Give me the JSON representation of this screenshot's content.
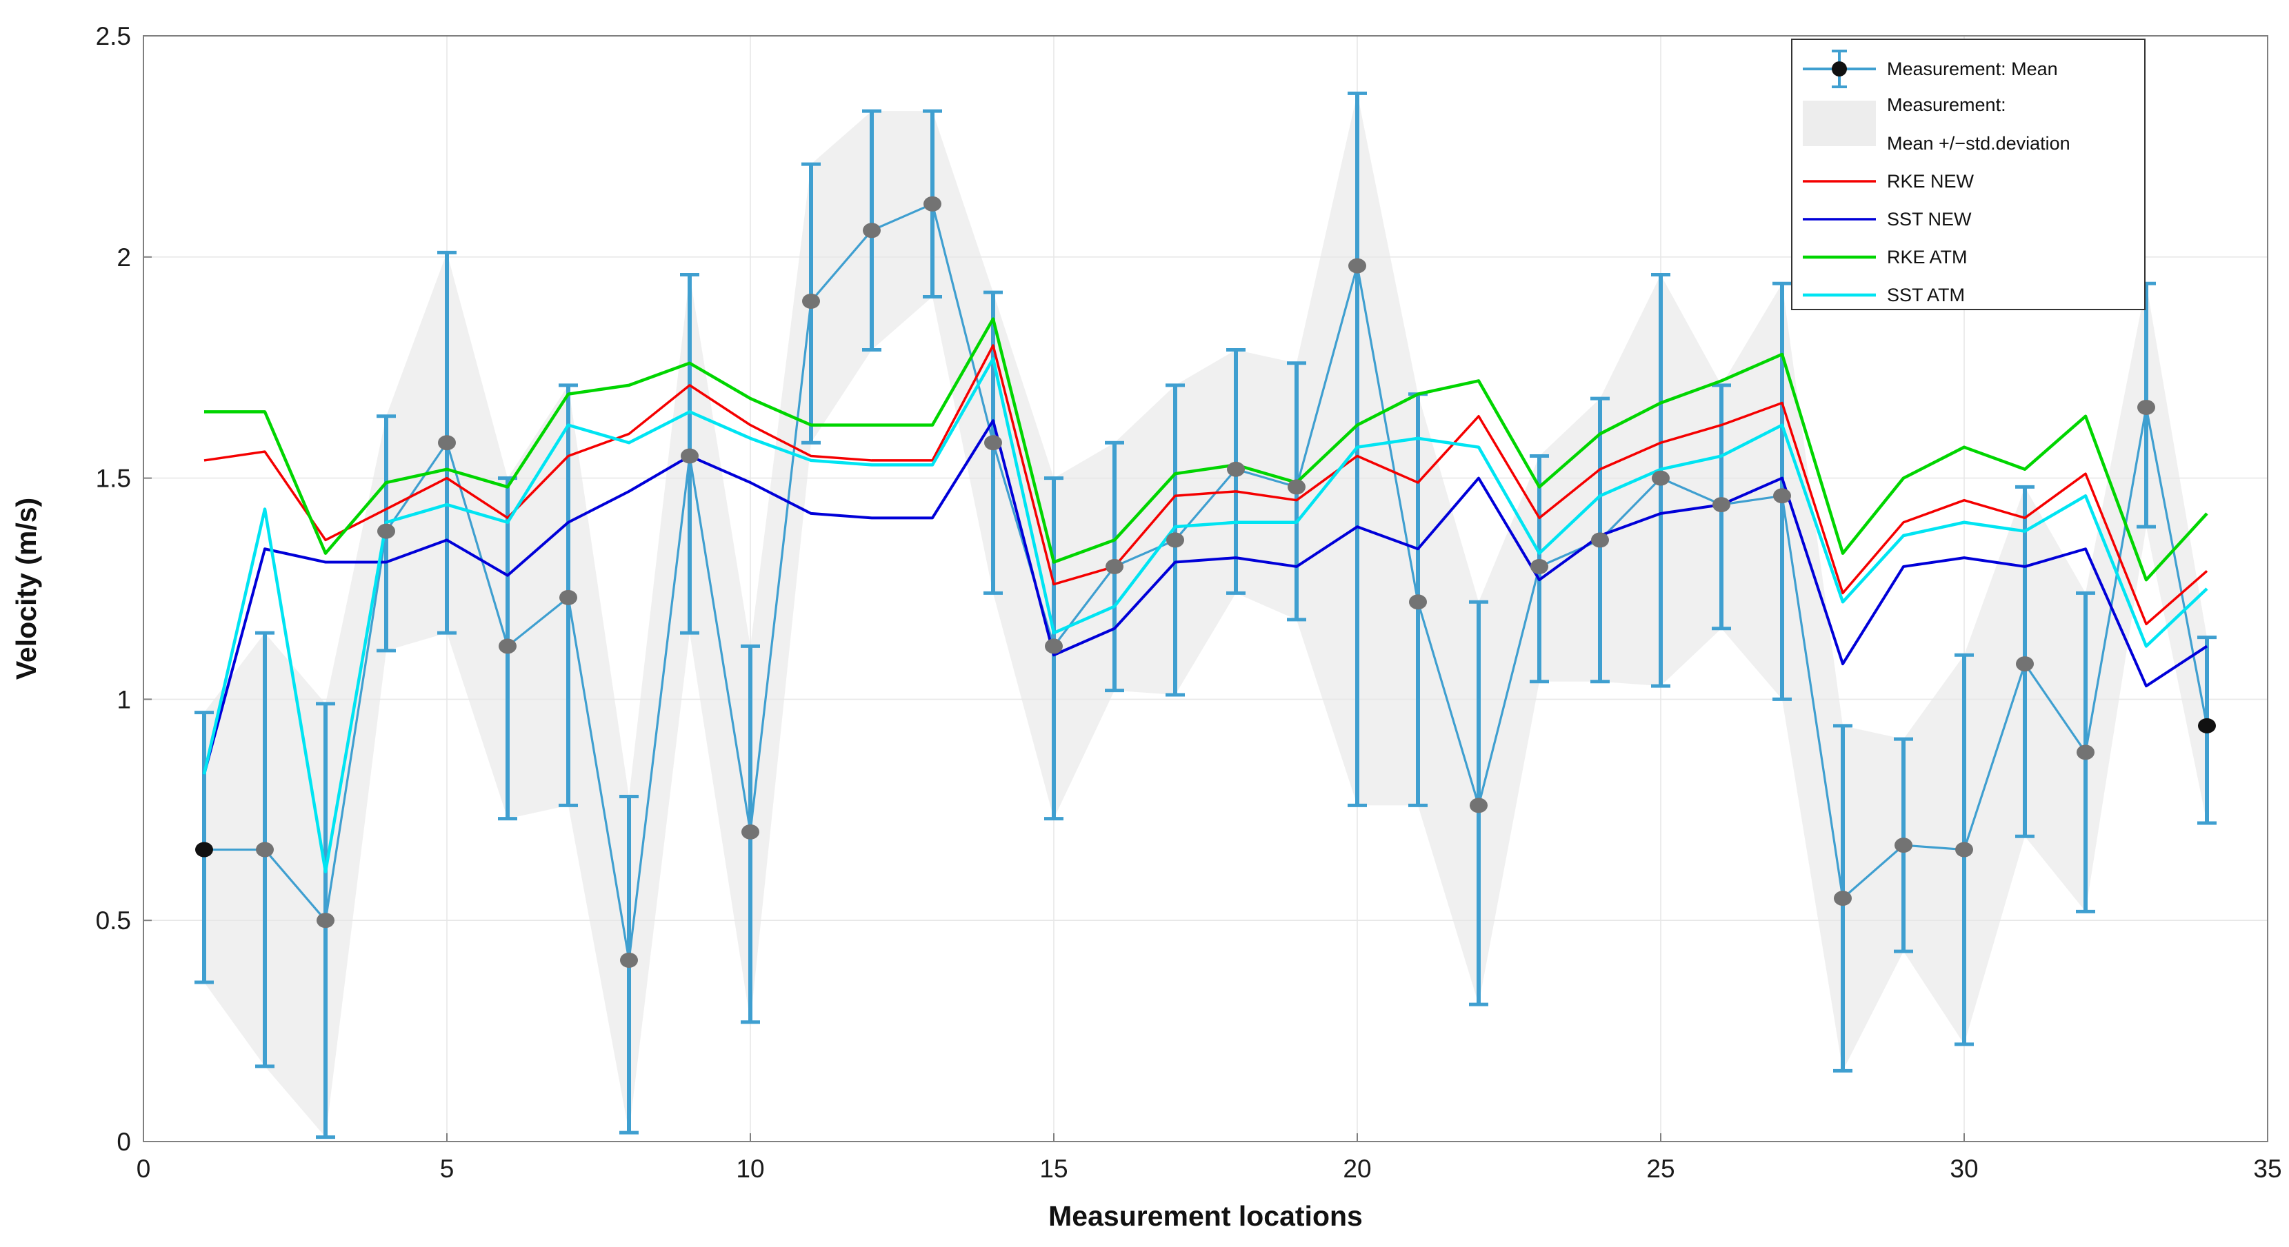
{
  "chart_data": {
    "type": "line",
    "title": "",
    "xlabel": "Measurement locations",
    "ylabel": "Velocity (m/s)",
    "xlim": [
      0,
      35
    ],
    "ylim": [
      0,
      2.5
    ],
    "x_ticks": [
      0,
      5,
      10,
      15,
      20,
      25,
      30,
      35
    ],
    "y_ticks": [
      0,
      0.5,
      1,
      1.5,
      2,
      2.5
    ],
    "grid": true,
    "legend_position": "top-right",
    "x": [
      1,
      2,
      3,
      4,
      5,
      6,
      7,
      8,
      9,
      10,
      11,
      12,
      13,
      14,
      15,
      16,
      17,
      18,
      19,
      20,
      21,
      22,
      23,
      24,
      25,
      26,
      27,
      28,
      29,
      30,
      31,
      32,
      33,
      34
    ],
    "measurement": {
      "name": "Measurement: Mean",
      "line_color": "#3f9fd0",
      "marker_color": "#737373",
      "endpoint_marker_color": "#111111",
      "mean": [
        0.66,
        0.66,
        0.5,
        1.38,
        1.58,
        1.12,
        1.23,
        0.41,
        1.55,
        0.7,
        1.9,
        2.06,
        2.12,
        1.58,
        1.12,
        1.3,
        1.36,
        1.52,
        1.48,
        1.98,
        1.22,
        0.76,
        1.3,
        1.36,
        1.5,
        1.44,
        1.46,
        0.55,
        0.67,
        0.66,
        1.08,
        0.88,
        1.66,
        0.94
      ],
      "upper": [
        0.97,
        1.15,
        0.99,
        1.64,
        2.01,
        1.5,
        1.71,
        0.78,
        1.96,
        1.12,
        2.21,
        2.33,
        2.33,
        1.92,
        1.5,
        1.58,
        1.71,
        1.79,
        1.76,
        2.37,
        1.69,
        1.22,
        1.55,
        1.68,
        1.96,
        1.71,
        1.94,
        0.94,
        0.91,
        1.1,
        1.48,
        1.24,
        1.94,
        1.14
      ],
      "lower": [
        0.36,
        0.17,
        0.01,
        1.11,
        1.15,
        0.73,
        0.76,
        0.02,
        1.15,
        0.27,
        1.58,
        1.79,
        1.91,
        1.24,
        0.73,
        1.02,
        1.01,
        1.24,
        1.18,
        0.76,
        0.76,
        0.31,
        1.04,
        1.04,
        1.03,
        1.16,
        1.0,
        0.16,
        0.43,
        0.22,
        0.69,
        0.52,
        1.39,
        0.72
      ]
    },
    "band": {
      "name": "Measurement: Mean +/−std.deviation",
      "color": "#dedede",
      "opacity": 0.45
    },
    "series": [
      {
        "name": "RKE NEW",
        "color": "#f40000",
        "width": 3.5,
        "values": [
          1.54,
          1.56,
          1.36,
          1.43,
          1.5,
          1.41,
          1.55,
          1.6,
          1.71,
          1.62,
          1.55,
          1.54,
          1.54,
          1.8,
          1.26,
          1.3,
          1.46,
          1.47,
          1.45,
          1.55,
          1.49,
          1.64,
          1.41,
          1.52,
          1.58,
          1.62,
          1.67,
          1.24,
          1.4,
          1.45,
          1.41,
          1.51,
          1.17,
          1.29
        ]
      },
      {
        "name": "SST NEW",
        "color": "#0000d8",
        "width": 4,
        "values": [
          0.83,
          1.34,
          1.31,
          1.31,
          1.36,
          1.28,
          1.4,
          1.47,
          1.55,
          1.49,
          1.42,
          1.41,
          1.41,
          1.63,
          1.1,
          1.16,
          1.31,
          1.32,
          1.3,
          1.39,
          1.34,
          1.5,
          1.27,
          1.37,
          1.42,
          1.44,
          1.5,
          1.08,
          1.3,
          1.32,
          1.3,
          1.34,
          1.03,
          1.12
        ]
      },
      {
        "name": "RKE ATM",
        "color": "#00d500",
        "width": 4.5,
        "values": [
          1.65,
          1.65,
          1.33,
          1.49,
          1.52,
          1.48,
          1.69,
          1.71,
          1.76,
          1.68,
          1.62,
          1.62,
          1.62,
          1.86,
          1.31,
          1.36,
          1.51,
          1.53,
          1.49,
          1.62,
          1.69,
          1.72,
          1.48,
          1.6,
          1.67,
          1.72,
          1.78,
          1.33,
          1.5,
          1.57,
          1.52,
          1.64,
          1.27,
          1.42
        ]
      },
      {
        "name": "SST ATM",
        "color": "#00e4f2",
        "width": 4.5,
        "values": [
          0.83,
          1.43,
          0.61,
          1.4,
          1.44,
          1.4,
          1.62,
          1.58,
          1.65,
          1.59,
          1.54,
          1.53,
          1.53,
          1.77,
          1.15,
          1.21,
          1.39,
          1.4,
          1.4,
          1.57,
          1.59,
          1.57,
          1.33,
          1.46,
          1.52,
          1.55,
          1.62,
          1.22,
          1.37,
          1.4,
          1.38,
          1.46,
          1.12,
          1.25
        ]
      }
    ],
    "legend": {
      "entries": [
        {
          "label": "Measurement: Mean",
          "sample": "errorbar"
        },
        {
          "label": "Measurement:",
          "label2": "Mean +/−std.deviation",
          "sample": "patch"
        },
        {
          "label": "RKE NEW",
          "sample": "line",
          "color": "#f40000"
        },
        {
          "label": "SST NEW",
          "sample": "line",
          "color": "#0000d8"
        },
        {
          "label": "RKE ATM",
          "sample": "line",
          "color": "#00d500"
        },
        {
          "label": "SST ATM",
          "sample": "line",
          "color": "#00e4f2"
        }
      ]
    },
    "style": {
      "grid_color": "#e7e7e7",
      "axis_color": "#7f7f7f",
      "tick_label_color": "#1a1a1a",
      "band_color": "#dedede"
    }
  }
}
